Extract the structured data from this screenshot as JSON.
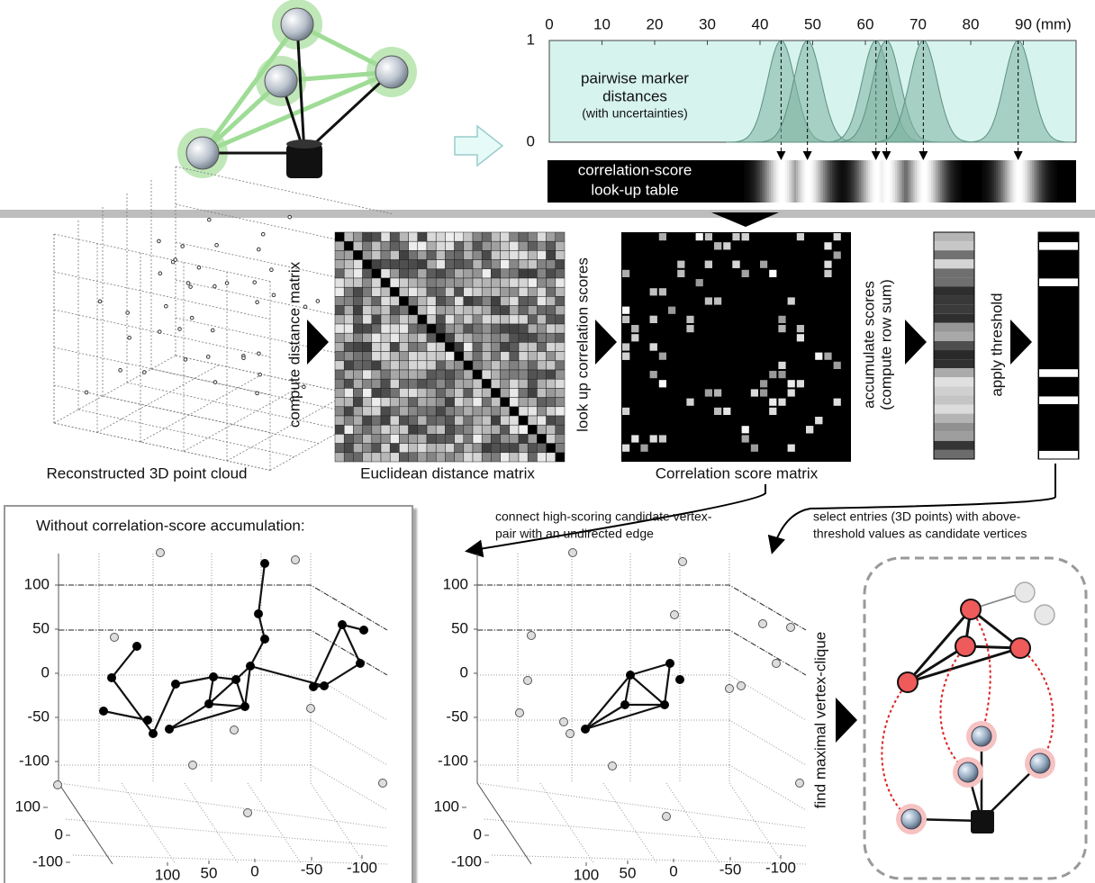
{
  "distance_plot": {
    "xticks": [
      0,
      10,
      20,
      30,
      40,
      50,
      60,
      70,
      80,
      90
    ],
    "xlim": [
      0,
      100
    ],
    "x_unit": "(mm)",
    "yticks": [
      1,
      0
    ],
    "ylim": [
      0,
      1
    ],
    "title_lines": [
      "pairwise marker",
      "distances"
    ],
    "note": "(with uncertainties)",
    "peaks": [
      44,
      49,
      62,
      64,
      71,
      89
    ]
  },
  "lookup_table": {
    "label_lines": [
      "correlation-score",
      "look-up table"
    ]
  },
  "pipeline": {
    "point_cloud": "Reconstructed 3D point cloud",
    "step_distance": "compute distance matrix",
    "distance_matrix": "Euclidean distance matrix",
    "step_lookup": "look up correlation scores",
    "score_matrix": "Correlation score matrix",
    "step_accumulate": [
      "accumulate scores",
      "(compute row sum)"
    ],
    "step_threshold": "apply threshold"
  },
  "bottom": {
    "left_title": "Without correlation-score accumulation:",
    "connect_note": [
      "connect high-scoring candidate vertex-",
      "pair with an undirected edge"
    ],
    "select_note": [
      "select entries (3D points) with above-",
      "threshold values as candidate vertices"
    ],
    "clique_step": "find maximal vertex-clique",
    "plots": [
      {
        "zticks": [
          100,
          50,
          0,
          -50,
          -100
        ],
        "yticks": [
          100,
          0,
          -100
        ],
        "xticks": [
          100,
          50,
          0,
          -50,
          -100
        ]
      },
      {
        "zticks": [
          100,
          50,
          0,
          -50,
          -100
        ],
        "yticks": [
          100,
          0,
          -100
        ],
        "xticks": [
          100,
          50,
          0,
          -50,
          -100
        ]
      }
    ]
  }
}
